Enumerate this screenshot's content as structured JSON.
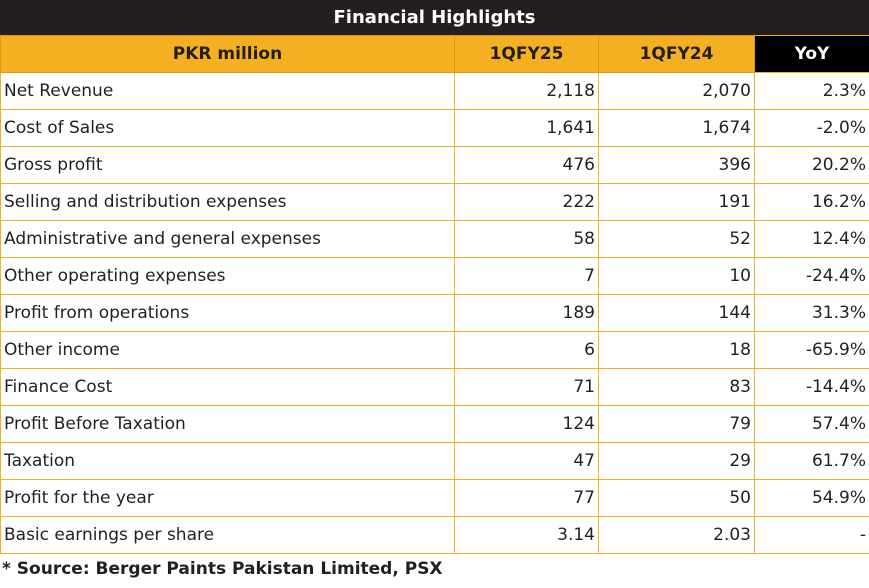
{
  "title": "Financial Highlights",
  "columns": [
    "PKR million",
    "1QFY25",
    "1QFY24",
    "YoY"
  ],
  "rows": [
    {
      "label": "Net Revenue",
      "q25": "2,118",
      "q24": "2,070",
      "yoy": "2.3%"
    },
    {
      "label": "Cost of Sales",
      "q25": "1,641",
      "q24": "1,674",
      "yoy": "-2.0%"
    },
    {
      "label": "Gross profit",
      "q25": "476",
      "q24": "396",
      "yoy": "20.2%"
    },
    {
      "label": "Selling and distribution expenses",
      "q25": "222",
      "q24": "191",
      "yoy": "16.2%"
    },
    {
      "label": "Administrative and general expenses",
      "q25": "58",
      "q24": "52",
      "yoy": "12.4%"
    },
    {
      "label": "Other operating expenses",
      "q25": "7",
      "q24": "10",
      "yoy": "-24.4%"
    },
    {
      "label": "Profit from operations",
      "q25": "189",
      "q24": "144",
      "yoy": "31.3%"
    },
    {
      "label": "Other income",
      "q25": "6",
      "q24": "18",
      "yoy": "-65.9%"
    },
    {
      "label": "Finance Cost",
      "q25": "71",
      "q24": "83",
      "yoy": "-14.4%"
    },
    {
      "label": "Profit Before Taxation",
      "q25": "124",
      "q24": "79",
      "yoy": "57.4%"
    },
    {
      "label": "Taxation",
      "q25": "47",
      "q24": "29",
      "yoy": "61.7%"
    },
    {
      "label": "Profit for the year",
      "q25": "77",
      "q24": "50",
      "yoy": "54.9%"
    },
    {
      "label": "Basic earnings per share",
      "q25": "3.14",
      "q24": "2.03",
      "yoy": "-"
    }
  ],
  "footnote": "* Source: Berger Paints Pakistan Limited, PSX",
  "colors": {
    "accent": "#f5b021",
    "dark": "#231f20",
    "header_black": "#000000"
  }
}
